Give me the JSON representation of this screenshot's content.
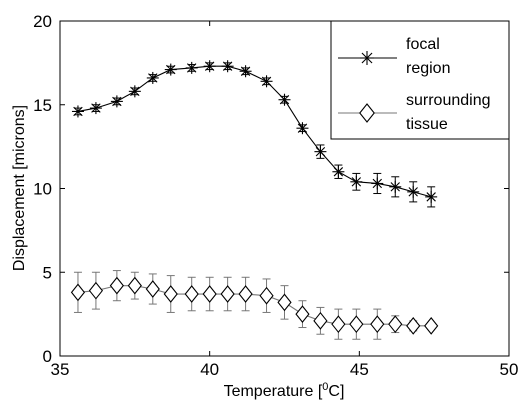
{
  "chart_data": {
    "type": "line",
    "xlabel_main": "Temperature [",
    "xlabel_sup": "0",
    "xlabel_end": "C]",
    "ylabel": "Displacement [microns]",
    "xlim": [
      35,
      50
    ],
    "ylim": [
      0,
      20
    ],
    "xticks": [
      "35",
      "40",
      "45",
      "50"
    ],
    "yticks": [
      "0",
      "5",
      "10",
      "15",
      "20"
    ],
    "grid": false,
    "legend_position": "top-right",
    "x": [
      35.6,
      36.2,
      36.9,
      37.5,
      38.1,
      38.7,
      39.4,
      40.0,
      40.6,
      41.2,
      41.9,
      42.5,
      43.1,
      43.7,
      44.3,
      44.9,
      45.6,
      46.2,
      46.8,
      47.4
    ],
    "series": [
      {
        "name_line1": "focal",
        "name_line2": "region",
        "marker": "asterisk",
        "color": "#000000",
        "values": [
          14.6,
          14.8,
          15.2,
          15.8,
          16.6,
          17.1,
          17.2,
          17.3,
          17.3,
          17.0,
          16.4,
          15.3,
          13.6,
          12.2,
          11.0,
          10.4,
          10.3,
          10.1,
          9.8,
          9.5
        ],
        "errors": [
          0.2,
          0.2,
          0.2,
          0.2,
          0.2,
          0.2,
          0.2,
          0.2,
          0.2,
          0.2,
          0.2,
          0.2,
          0.2,
          0.4,
          0.4,
          0.5,
          0.6,
          0.6,
          0.6,
          0.6
        ]
      },
      {
        "name_line1": "surrounding",
        "name_line2": "tissue",
        "marker": "diamond",
        "color": "#777777",
        "values": [
          3.8,
          3.9,
          4.2,
          4.2,
          4.0,
          3.7,
          3.7,
          3.7,
          3.7,
          3.7,
          3.6,
          3.2,
          2.5,
          2.1,
          1.9,
          1.9,
          1.9,
          1.9,
          1.8,
          1.8
        ],
        "errors": [
          1.2,
          1.1,
          0.9,
          0.8,
          0.9,
          1.1,
          1.0,
          1.0,
          1.0,
          1.0,
          1.0,
          1.0,
          0.8,
          0.8,
          0.9,
          0.9,
          0.9,
          0.5,
          0.3,
          0.2
        ]
      }
    ]
  }
}
